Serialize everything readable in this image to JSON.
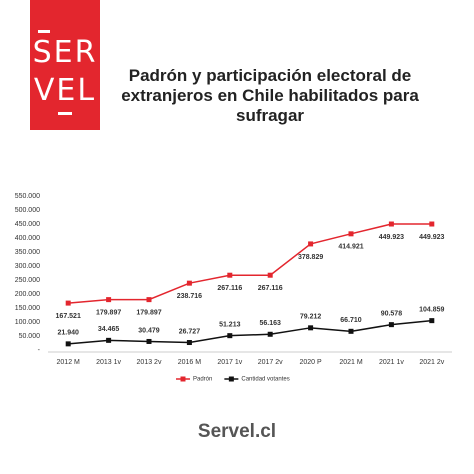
{
  "logo": {
    "top": "SER",
    "bottom": "VEL"
  },
  "footer": "Servel.cl",
  "chart_data": {
    "type": "line",
    "title": "Padrón y participación electoral de extranjeros en Chile habilitados para sufragar",
    "categories": [
      "2012 M",
      "2013 1v",
      "2013 2v",
      "2016 M",
      "2017 1v",
      "2017 2v",
      "2020 P",
      "2021 M",
      "2021 1v",
      "2021 2v"
    ],
    "series": [
      {
        "name": "Padrón",
        "color": "#e3262e",
        "marker": "square",
        "values": [
          167521,
          179897,
          179897,
          238716,
          267116,
          267116,
          378829,
          414921,
          449923,
          449923
        ],
        "value_labels": [
          "167.521",
          "179.897",
          "179.897",
          "238.716",
          "267.116",
          "267.116",
          "378.829",
          "414.921",
          "449.923",
          "449.923"
        ]
      },
      {
        "name": "Cantidad votantes",
        "color": "#111111",
        "marker": "square",
        "values": [
          21940,
          34465,
          30479,
          26727,
          51213,
          56163,
          79212,
          66710,
          90578,
          104859
        ],
        "value_labels": [
          "21.940",
          "34.465",
          "30.479",
          "26.727",
          "51.213",
          "56.163",
          "79.212",
          "66.710",
          "90.578",
          "104.859"
        ]
      }
    ],
    "ylim": [
      0,
      550000
    ],
    "yticks": [
      {
        "value": 0,
        "label": "-"
      },
      {
        "value": 50000,
        "label": "50.000"
      },
      {
        "value": 100000,
        "label": "100.000"
      },
      {
        "value": 150000,
        "label": "150.000"
      },
      {
        "value": 200000,
        "label": "200.000"
      },
      {
        "value": 250000,
        "label": "250.000"
      },
      {
        "value": 300000,
        "label": "300.000"
      },
      {
        "value": 350000,
        "label": "350.000"
      },
      {
        "value": 400000,
        "label": "400.000"
      },
      {
        "value": 450000,
        "label": "450.000"
      },
      {
        "value": 500000,
        "label": "500.000"
      },
      {
        "value": 550000,
        "label": "550.000"
      }
    ],
    "grid": false,
    "legend": "bottom"
  }
}
